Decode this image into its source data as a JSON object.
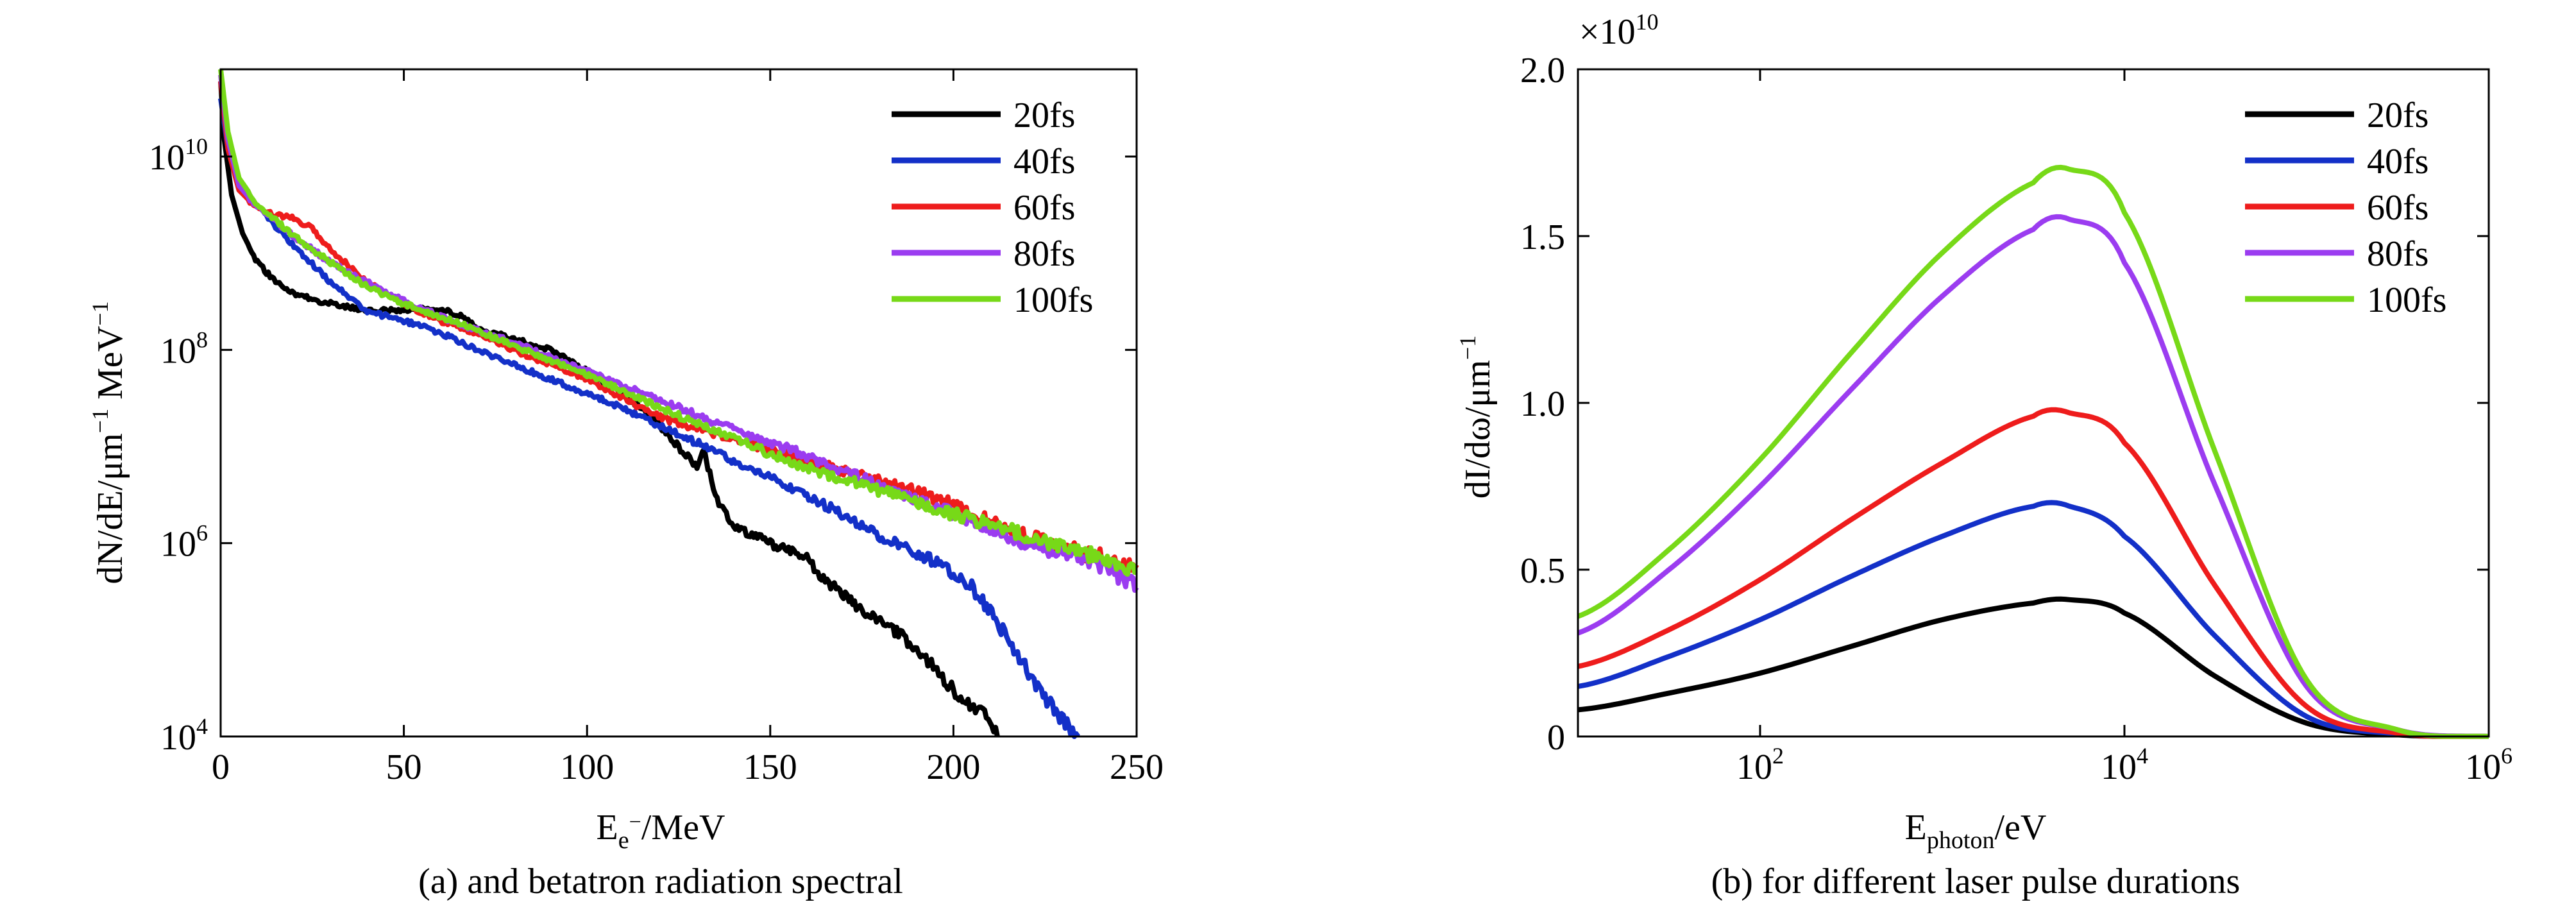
{
  "chart_data": [
    {
      "type": "line",
      "xlabel_main": "E",
      "xlabel_sub": "e",
      "xlabel_sup": "−",
      "xlabel_rest": "/MeV",
      "ylabel_parts": [
        "dN/dE/μm",
        "−1",
        " MeV",
        "−1"
      ],
      "caption": "(a) and betatron radiation spectral",
      "xlim": [
        0,
        250
      ],
      "ylim": [
        10000,
        80000000000
      ],
      "yscale": "log",
      "x_ticks": [
        "0",
        "50",
        "100",
        "150",
        "200",
        "250"
      ],
      "y_ticks": [
        {
          "base": "10",
          "exp": "4",
          "value": 10000
        },
        {
          "base": "10",
          "exp": "6",
          "value": 1000000
        },
        {
          "base": "10",
          "exp": "8",
          "value": 100000000
        },
        {
          "base": "10",
          "exp": "10",
          "value": 10000000000
        }
      ],
      "legend_position": "top-right",
      "series": [
        {
          "name": "20fs",
          "color": "#000000",
          "x": [
            0,
            1,
            3,
            6,
            10,
            15,
            20,
            30,
            40,
            50,
            60,
            65,
            70,
            80,
            90,
            100,
            110,
            118,
            125,
            130,
            132,
            135,
            140,
            150,
            160,
            165,
            170,
            175,
            180,
            185,
            190,
            195,
            200,
            205,
            210,
            212
          ],
          "y": [
            60000000000,
            15000000000,
            4000000000,
            1600000000,
            800000000,
            500000000,
            380000000,
            300000000,
            250000000,
            260000000,
            270000000,
            230000000,
            170000000,
            130000000,
            100000000,
            60000000,
            35000000,
            20000000,
            10000000,
            6000000,
            9000000,
            3000000,
            1500000,
            1000000,
            700000,
            400000,
            300000,
            200000,
            150000,
            120000,
            80000,
            50000,
            30000,
            20000,
            15000,
            10000
          ]
        },
        {
          "name": "40fs",
          "color": "#1330c8",
          "x": [
            0,
            2,
            5,
            10,
            20,
            30,
            40,
            50,
            60,
            70,
            80,
            90,
            100,
            110,
            120,
            130,
            140,
            150,
            160,
            170,
            180,
            190,
            200,
            205,
            210,
            215,
            220,
            225,
            230,
            234
          ],
          "y": [
            40000000000,
            12000000000,
            4500000000,
            3000000000,
            1200000000,
            500000000,
            250000000,
            200000000,
            150000000,
            100000000,
            70000000,
            50000000,
            35000000,
            25000000,
            16000000,
            11000000,
            7000000,
            5000000,
            3000000,
            2000000,
            1200000,
            800000,
            500000,
            350000,
            200000,
            100000,
            50000,
            25000,
            15000,
            10000
          ]
        },
        {
          "name": "60fs",
          "color": "#ee1c1c",
          "x": [
            0,
            2,
            5,
            10,
            15,
            20,
            25,
            30,
            40,
            50,
            60,
            70,
            80,
            100,
            120,
            140,
            160,
            180,
            200,
            220,
            235,
            250
          ],
          "y": [
            60000000000,
            12000000000,
            4500000000,
            2900000000,
            2500000000,
            2300000000,
            1800000000,
            1100000000,
            500000000,
            300000000,
            200000000,
            150000000,
            100000000,
            50000000,
            20000000,
            12000000,
            7000000,
            4500000,
            2500000,
            1200000,
            800000,
            600000
          ]
        },
        {
          "name": "80fs",
          "color": "#9b3cf0",
          "x": [
            0,
            2,
            5,
            10,
            20,
            30,
            40,
            50,
            60,
            70,
            80,
            100,
            120,
            140,
            160,
            180,
            200,
            220,
            240,
            250
          ],
          "y": [
            70000000000,
            15000000000,
            5000000000,
            3000000000,
            1500000000,
            800000000,
            500000000,
            320000000,
            220000000,
            160000000,
            120000000,
            60000000,
            30000000,
            15000000,
            8000000,
            4000000,
            2000000,
            1000000,
            600000,
            350000
          ]
        },
        {
          "name": "100fs",
          "color": "#77d918",
          "x": [
            0,
            2,
            5,
            10,
            20,
            30,
            40,
            50,
            60,
            70,
            80,
            100,
            120,
            140,
            160,
            180,
            200,
            220,
            240,
            250
          ],
          "y": [
            80000000000,
            18000000000,
            6000000000,
            3200000000,
            1500000000,
            800000000,
            450000000,
            300000000,
            220000000,
            160000000,
            110000000,
            55000000,
            25000000,
            12000000,
            6000000,
            3500000,
            2000000,
            1200000,
            700000,
            500000
          ]
        }
      ]
    },
    {
      "type": "line",
      "multiplier": "×10",
      "multiplier_exp": "10",
      "xlabel_main": "E",
      "xlabel_sub": "photon",
      "xlabel_rest": "/eV",
      "ylabel": "dI/dω/μm",
      "ylabel_sup": "−1",
      "caption": "(b) for different laser pulse durations",
      "xscale": "log",
      "xlim": [
        10,
        1000000
      ],
      "ylim": [
        0,
        2.0
      ],
      "x_ticks": [
        {
          "base": "10",
          "exp": "2",
          "value": 100
        },
        {
          "base": "10",
          "exp": "4",
          "value": 10000
        },
        {
          "base": "10",
          "exp": "6",
          "value": 1000000
        }
      ],
      "y_ticks": [
        {
          "label": "0",
          "value": 0
        },
        {
          "label": "0.5",
          "value": 0.5
        },
        {
          "label": "1.0",
          "value": 1.0
        },
        {
          "label": "1.5",
          "value": 1.5
        },
        {
          "label": "2.0",
          "value": 2.0
        }
      ],
      "legend_position": "top-right",
      "series": [
        {
          "name": "20fs",
          "color": "#000000",
          "x": [
            10,
            31.6,
            100,
            316,
            1000,
            3162,
            5000,
            10000,
            31623,
            100000,
            316228,
            1000000
          ],
          "y": [
            0.08,
            0.13,
            0.19,
            0.27,
            0.35,
            0.4,
            0.41,
            0.37,
            0.18,
            0.04,
            0.005,
            0.0
          ]
        },
        {
          "name": "40fs",
          "color": "#1330c8",
          "x": [
            10,
            31.6,
            100,
            316,
            1000,
            3162,
            5000,
            10000,
            31623,
            100000,
            316228,
            1000000
          ],
          "y": [
            0.15,
            0.24,
            0.35,
            0.48,
            0.6,
            0.69,
            0.69,
            0.6,
            0.3,
            0.06,
            0.008,
            0.0
          ]
        },
        {
          "name": "60fs",
          "color": "#ee1c1c",
          "x": [
            10,
            31.6,
            100,
            316,
            1000,
            3162,
            5000,
            10000,
            31623,
            100000,
            316228,
            1000000
          ],
          "y": [
            0.21,
            0.32,
            0.47,
            0.65,
            0.82,
            0.96,
            0.97,
            0.88,
            0.45,
            0.09,
            0.01,
            0.0
          ]
        },
        {
          "name": "80fs",
          "color": "#9b3cf0",
          "x": [
            10,
            31.6,
            100,
            316,
            1000,
            3162,
            5000,
            10000,
            31623,
            100000,
            316228,
            1000000
          ],
          "y": [
            0.31,
            0.5,
            0.75,
            1.04,
            1.32,
            1.52,
            1.55,
            1.42,
            0.75,
            0.15,
            0.02,
            0.0
          ]
        },
        {
          "name": "100fs",
          "color": "#77d918",
          "x": [
            10,
            31.6,
            100,
            316,
            1000,
            3162,
            5000,
            10000,
            31623,
            100000,
            316228,
            1000000
          ],
          "y": [
            0.36,
            0.56,
            0.83,
            1.15,
            1.45,
            1.66,
            1.7,
            1.57,
            0.85,
            0.17,
            0.02,
            0.0
          ]
        }
      ]
    }
  ]
}
